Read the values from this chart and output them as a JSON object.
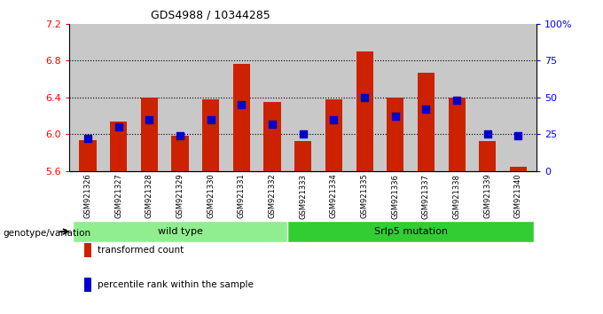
{
  "title": "GDS4988 / 10344285",
  "samples": [
    "GSM921326",
    "GSM921327",
    "GSM921328",
    "GSM921329",
    "GSM921330",
    "GSM921331",
    "GSM921332",
    "GSM921333",
    "GSM921334",
    "GSM921335",
    "GSM921336",
    "GSM921337",
    "GSM921338",
    "GSM921339",
    "GSM921340"
  ],
  "transformed_count": [
    5.94,
    6.14,
    6.4,
    5.98,
    6.38,
    6.76,
    6.35,
    5.93,
    6.38,
    6.9,
    6.4,
    6.67,
    6.4,
    5.93,
    5.65
  ],
  "percentile_rank": [
    22,
    30,
    35,
    24,
    35,
    45,
    32,
    25,
    35,
    50,
    37,
    42,
    48,
    25,
    24
  ],
  "ymin": 5.6,
  "ymax": 7.2,
  "yticks": [
    5.6,
    6.0,
    6.4,
    6.8,
    7.2
  ],
  "right_yticks": [
    0,
    25,
    50,
    75,
    100
  ],
  "right_yticklabels": [
    "0",
    "25",
    "50",
    "75",
    "100%"
  ],
  "dotted_lines": [
    6.0,
    6.4,
    6.8
  ],
  "bar_color": "#CC2200",
  "dot_color": "#0000CC",
  "groups": [
    {
      "label": "wild type",
      "start": 0,
      "end": 7,
      "color": "#90EE90"
    },
    {
      "label": "Srlp5 mutation",
      "start": 7,
      "end": 15,
      "color": "#32CD32"
    }
  ],
  "genotype_label": "genotype/variation",
  "legend_items": [
    {
      "label": "transformed count",
      "color": "#CC2200"
    },
    {
      "label": "percentile rank within the sample",
      "color": "#0000CC"
    }
  ],
  "bar_width": 0.55,
  "dot_size": 28,
  "background_color": "#ffffff",
  "plot_bg_color": "#c8c8c8"
}
